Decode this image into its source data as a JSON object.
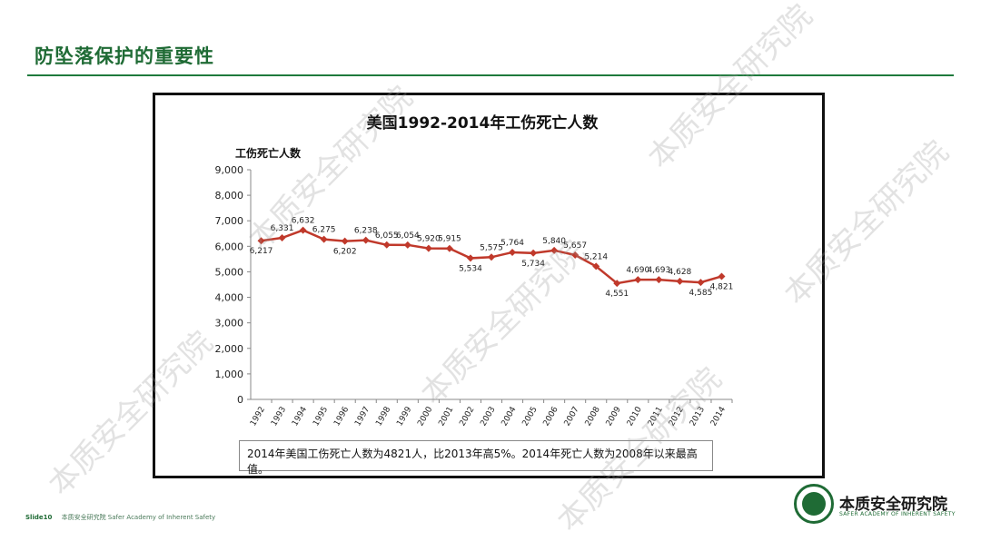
{
  "slide": {
    "title": "防坠落保护的重要性",
    "footer_slide": "Slide10",
    "footer_text": "本质安全研究院 Safer Academy of Inherent Safety",
    "logo_name": "本质安全研究院",
    "logo_sub": "SAFER ACADEMY OF INHERENT SAFETY",
    "watermark": "本质安全研究院",
    "note": "2014年美国工伤死亡人数为4821人，比2013年高5%。2014年死亡人数为2008年以来最高值。"
  },
  "chart_data": {
    "type": "line",
    "title": "美国1992-2014年工伤死亡人数",
    "ylabel": "工伤死亡人数",
    "xlabel": "",
    "ylim": [
      0,
      9000
    ],
    "yticks": [
      0,
      1000,
      2000,
      3000,
      4000,
      5000,
      6000,
      7000,
      8000,
      9000
    ],
    "categories": [
      "1992",
      "1993",
      "1994",
      "1995",
      "1996",
      "1997",
      "1998",
      "1999",
      "2000",
      "2001",
      "2002",
      "2003",
      "2004",
      "2005",
      "2006",
      "2007",
      "2008",
      "2009",
      "2010",
      "2011",
      "2012",
      "2013",
      "2014"
    ],
    "values": [
      6217,
      6331,
      6632,
      6275,
      6202,
      6238,
      6055,
      6054,
      5920,
      5915,
      5534,
      5575,
      5764,
      5734,
      5840,
      5657,
      5214,
      4551,
      4690,
      4693,
      4628,
      4585,
      4821
    ],
    "grid": false,
    "legend": "none",
    "line_color": "#c0392b"
  }
}
